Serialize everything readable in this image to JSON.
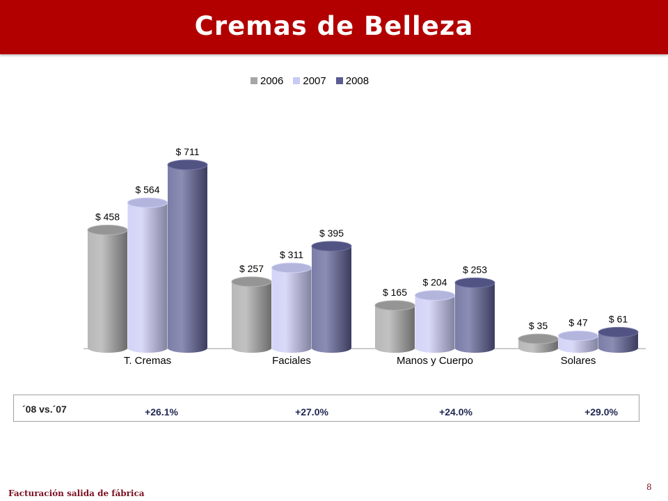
{
  "title": "Cremas de Belleza",
  "chart_data": {
    "type": "bar",
    "categories": [
      "T. Cremas",
      "Faciales",
      "Manos y Cuerpo",
      "Solares"
    ],
    "series": [
      {
        "name": "2006",
        "values": [
          458,
          257,
          165,
          35
        ],
        "labels": [
          "$ 458",
          "$ 257",
          "$ 165",
          "$ 35"
        ],
        "color": "#a6a6a6"
      },
      {
        "name": "2007",
        "values": [
          564,
          311,
          204,
          47
        ],
        "labels": [
          "$ 564",
          "$ 311",
          "$ 204",
          "$ 47"
        ],
        "color": "#c8c9f5"
      },
      {
        "name": "2008",
        "values": [
          711,
          395,
          253,
          61
        ],
        "labels": [
          "$ 711",
          "$ 395",
          "$ 253",
          "$ 61"
        ],
        "color": "#5a5c92"
      }
    ],
    "legend_position": "top-center",
    "grid": false
  },
  "comparison": {
    "label": "´08 vs.´07",
    "values": [
      "+26.1%",
      "+27.0%",
      "+24.0%",
      "+29.0%"
    ]
  },
  "footer": {
    "note": "Facturación salida de fábrica",
    "page": "8"
  }
}
